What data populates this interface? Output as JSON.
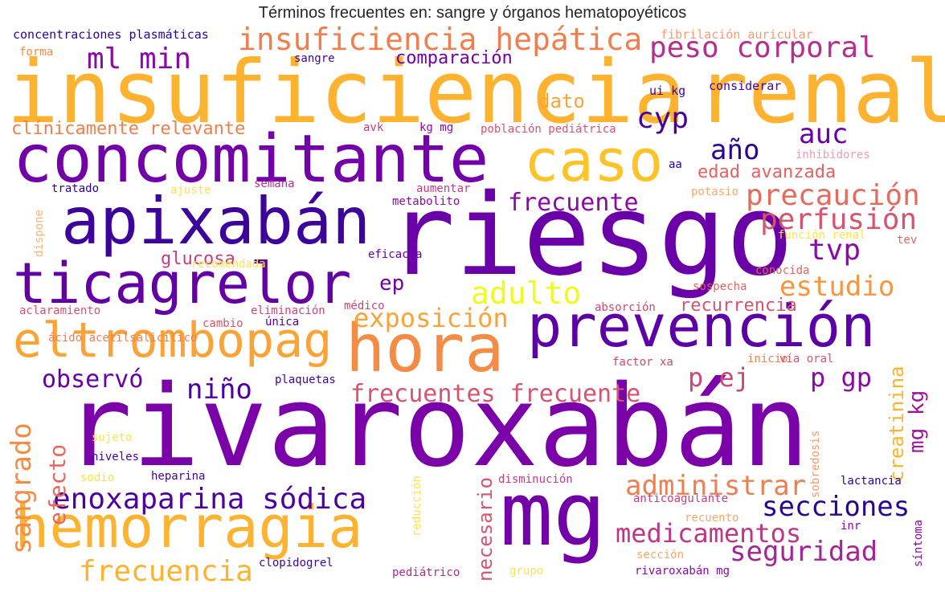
{
  "title": "Términos frecuentes en: sangre y órganos hematopoyéticos",
  "colors": {
    "background": "#ffffff",
    "palette": [
      "#0d0887",
      "#3e049c",
      "#6a00a8",
      "#8f0da4",
      "#b12a90",
      "#cc4778",
      "#e16462",
      "#f1834b",
      "#fca636",
      "#fccd25",
      "#f0f921"
    ]
  },
  "words": [
    "rivaroxabán",
    "riesgo",
    "insuficiencia",
    "renal",
    "concomitante",
    "mg",
    "hemorragia",
    "prevención",
    "apixabán",
    "hora",
    "ticagrelor",
    "caso",
    "eltrombopag",
    "insuficiencia hepática",
    "peso corporal",
    "frecuentes frecuente",
    "enoxaparina sódica",
    "medicamentos",
    "seguridad",
    "precaución",
    "perfusión",
    "estudio",
    "exposición",
    "secciones",
    "administrar",
    "frecuencia",
    "adulto",
    "auc",
    "cyp",
    "año",
    "tvp",
    "ml min",
    "niño",
    "observó",
    "p gp",
    "p ej",
    "frecuente",
    "sangrado",
    "mg kg",
    "edad avanzada",
    "ep",
    "comparación",
    "glucosa",
    "recurrencia",
    "creatinina",
    "efecto",
    "necesario",
    "dato",
    "clínicamente relevante",
    "concentraciones plasmáticas",
    "fibrilación auricular",
    "considerar",
    "forma",
    "sangre",
    "ui kg",
    "avk",
    "kg mg",
    "población pediátrica",
    "inhibidores",
    "aa",
    "tratado",
    "ajuste",
    "semana",
    "aumentar",
    "metabolito",
    "potasio",
    "dispone",
    "tev",
    "función renal",
    "recomendada",
    "eficacia",
    "conocida",
    "sospecha",
    "aclaramiento",
    "eliminación",
    "médico",
    "absorción",
    "cambio",
    "única",
    "ácido acetilsalicílico",
    "inicio",
    "vía oral",
    "plaquetas",
    "factor xa",
    "sujeto",
    "niveles",
    "sodio",
    "heparina",
    "disminución",
    "lactancia",
    "reducción",
    "sobredosis",
    "anticoagulante",
    "recuento",
    "inr",
    "síntoma",
    "sección",
    "clopidogrel",
    "grupo",
    "pediátrico",
    "rivaroxabán mg"
  ]
}
